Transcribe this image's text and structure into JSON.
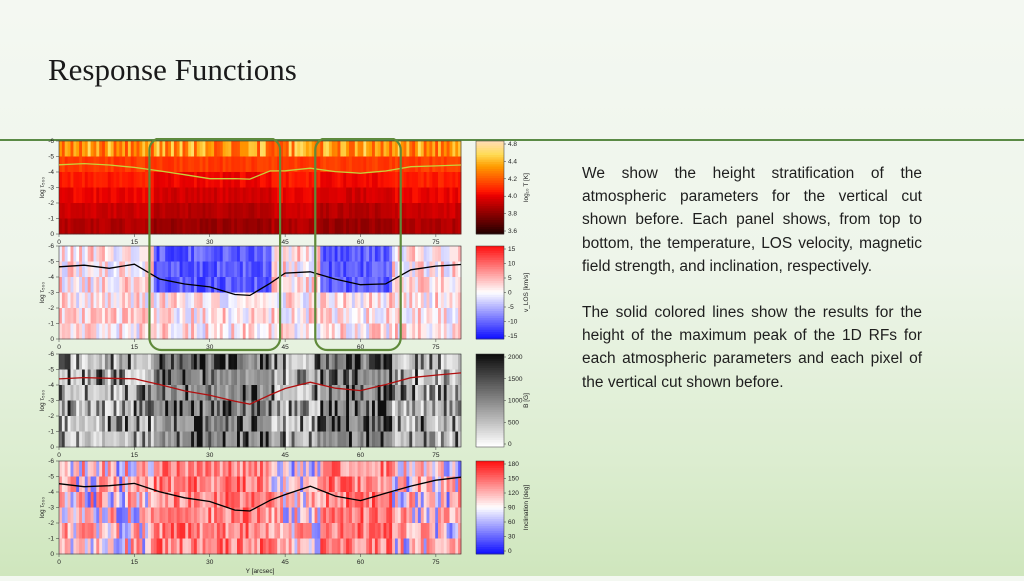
{
  "slide": {
    "title": "Response Functions",
    "paragraphs": [
      "We show the height stratification of the atmospheric parameters for the vertical cut shown before. Each panel shows, from top to bottom, the temperature, LOS velocity, magnetic field strength, and inclination, respectively.",
      "The solid colored lines show the results for the height of the maximum peak of the 1D RFs for each atmospheric parameters and each pixel of the vertical cut shown before."
    ]
  },
  "chart_data": {
    "type": "heatmap",
    "x": {
      "label": "Y [arcsec]",
      "lim": [
        0,
        80
      ],
      "ticks": [
        0,
        15,
        30,
        45,
        60,
        75
      ]
    },
    "y": {
      "label": "log τ₅₀₀",
      "lim": [
        0,
        -6
      ],
      "ticks": [
        0,
        -1,
        -2,
        -3,
        -4,
        -5,
        -6
      ]
    },
    "highlight_boxes": [
      {
        "x_from": 18,
        "x_to": 44
      },
      {
        "x_from": 51,
        "x_to": 68
      }
    ],
    "panels": [
      {
        "name": "temperature",
        "colorbar_label": "log₁₀ T [K]",
        "colorbar_ticks": [
          "4.8",
          "4.4",
          "4.2",
          "4.0",
          "3.8",
          "3.6"
        ],
        "colorbar_lim": [
          3.5,
          4.8
        ],
        "cmap": "hot",
        "line_color": "#c8d13a",
        "line_logtau": [
          [
            0,
            -4.4
          ],
          [
            5,
            -4.5
          ],
          [
            10,
            -4.4
          ],
          [
            15,
            -4.3
          ],
          [
            20,
            -4.0
          ],
          [
            25,
            -3.8
          ],
          [
            30,
            -3.6
          ],
          [
            35,
            -3.5
          ],
          [
            38,
            -3.6
          ],
          [
            42,
            -4.0
          ],
          [
            45,
            -4.1
          ],
          [
            50,
            -4.2
          ],
          [
            55,
            -4.1
          ],
          [
            60,
            -3.9
          ],
          [
            65,
            -4.1
          ],
          [
            70,
            -4.4
          ],
          [
            75,
            -4.4
          ],
          [
            80,
            -4.5
          ]
        ]
      },
      {
        "name": "los_velocity",
        "colorbar_label": "v_LOS [km/s]",
        "colorbar_ticks": [
          "15",
          "10",
          "5",
          "0",
          "-5",
          "-10",
          "-15"
        ],
        "colorbar_lim": [
          -15,
          15
        ],
        "cmap": "bwr",
        "line_color": "#000000",
        "line_logtau": [
          [
            0,
            -4.7
          ],
          [
            5,
            -4.8
          ],
          [
            10,
            -4.6
          ],
          [
            15,
            -4.8
          ],
          [
            20,
            -3.9
          ],
          [
            25,
            -3.6
          ],
          [
            30,
            -3.4
          ],
          [
            35,
            -2.8
          ],
          [
            38,
            -2.8
          ],
          [
            42,
            -3.6
          ],
          [
            45,
            -4.2
          ],
          [
            50,
            -4.4
          ],
          [
            55,
            -3.8
          ],
          [
            60,
            -3.5
          ],
          [
            65,
            -3.6
          ],
          [
            70,
            -4.5
          ],
          [
            75,
            -4.7
          ],
          [
            80,
            -4.8
          ]
        ]
      },
      {
        "name": "magnetic_field",
        "colorbar_label": "B [G]",
        "colorbar_ticks": [
          "2000",
          "1500",
          "1000",
          "500",
          "0"
        ],
        "colorbar_lim": [
          0,
          2000
        ],
        "cmap": "greys",
        "line_color": "#b01010",
        "line_logtau": [
          [
            0,
            -4.4
          ],
          [
            5,
            -4.5
          ],
          [
            10,
            -4.5
          ],
          [
            15,
            -4.4
          ],
          [
            20,
            -4.0
          ],
          [
            25,
            -3.6
          ],
          [
            30,
            -3.3
          ],
          [
            35,
            -2.9
          ],
          [
            38,
            -2.7
          ],
          [
            42,
            -3.3
          ],
          [
            45,
            -3.8
          ],
          [
            50,
            -4.2
          ],
          [
            55,
            -3.8
          ],
          [
            60,
            -3.6
          ],
          [
            65,
            -4.0
          ],
          [
            70,
            -4.4
          ],
          [
            75,
            -4.6
          ],
          [
            80,
            -4.8
          ]
        ]
      },
      {
        "name": "inclination",
        "colorbar_label": "Inclination [deg]",
        "colorbar_ticks": [
          "180",
          "150",
          "120",
          "90",
          "60",
          "30",
          "0"
        ],
        "colorbar_lim": [
          0,
          180
        ],
        "cmap": "bwr",
        "line_color": "#000000",
        "line_logtau": [
          [
            0,
            -4.5
          ],
          [
            5,
            -4.4
          ],
          [
            10,
            -4.4
          ],
          [
            15,
            -4.5
          ],
          [
            20,
            -4.0
          ],
          [
            25,
            -3.7
          ],
          [
            30,
            -3.4
          ],
          [
            35,
            -2.9
          ],
          [
            38,
            -2.8
          ],
          [
            42,
            -3.4
          ],
          [
            45,
            -3.9
          ],
          [
            50,
            -4.3
          ],
          [
            55,
            -3.8
          ],
          [
            60,
            -3.5
          ],
          [
            65,
            -3.9
          ],
          [
            70,
            -4.4
          ],
          [
            75,
            -4.7
          ],
          [
            80,
            -4.9
          ]
        ]
      }
    ]
  }
}
